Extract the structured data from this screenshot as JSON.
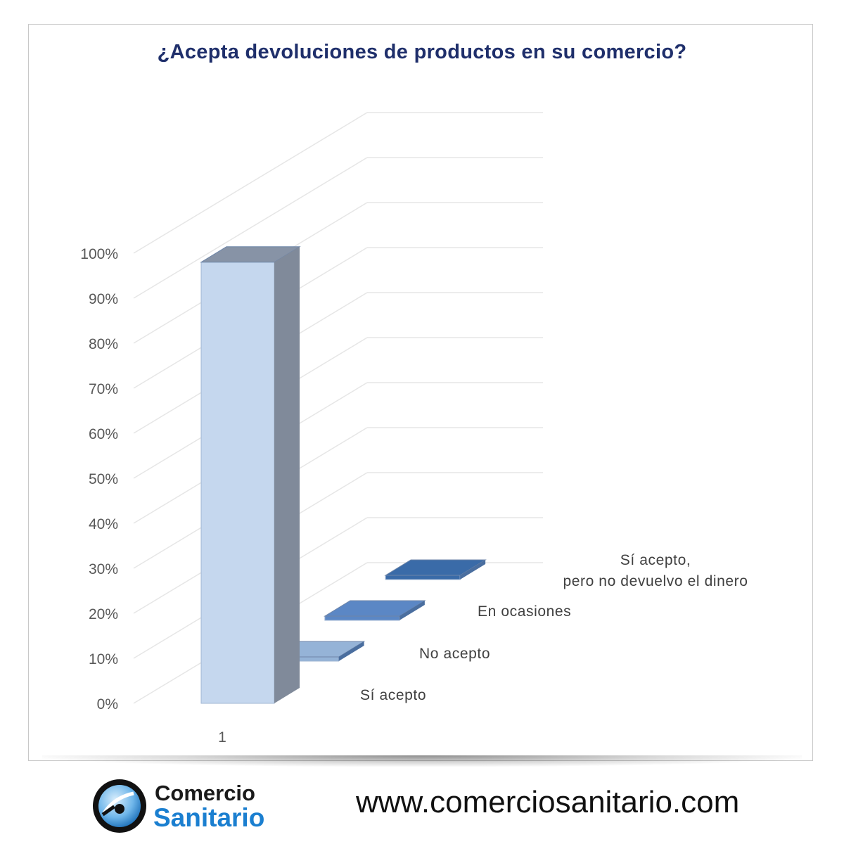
{
  "chart_data": {
    "type": "bar",
    "title": "¿Acepta devoluciones de productos en su comercio?",
    "categories": [
      "1"
    ],
    "y_ticks": [
      "0%",
      "10%",
      "20%",
      "30%",
      "40%",
      "50%",
      "60%",
      "70%",
      "80%",
      "90%",
      "100%"
    ],
    "ylim": [
      0,
      100
    ],
    "grid": true,
    "series": [
      {
        "name": "Sí acepto",
        "values": [
          98
        ],
        "color": "#c5d7ee"
      },
      {
        "name": "No acepto",
        "values": [
          1
        ],
        "color": "#95b3d7"
      },
      {
        "name": "En ocasiones",
        "values": [
          1
        ],
        "color": "#5b87c5"
      },
      {
        "name": "Sí acepto,\npero no devuelvo el dinero",
        "values": [
          1
        ],
        "color": "#3a6ba8"
      }
    ]
  },
  "footer": {
    "logo_word1": "Comercio",
    "logo_word2": "Sanitario",
    "url": "www.comerciosanitario.com"
  },
  "colors": {
    "title": "#1f2f6b",
    "logo_blue": "#1b7fd0"
  }
}
